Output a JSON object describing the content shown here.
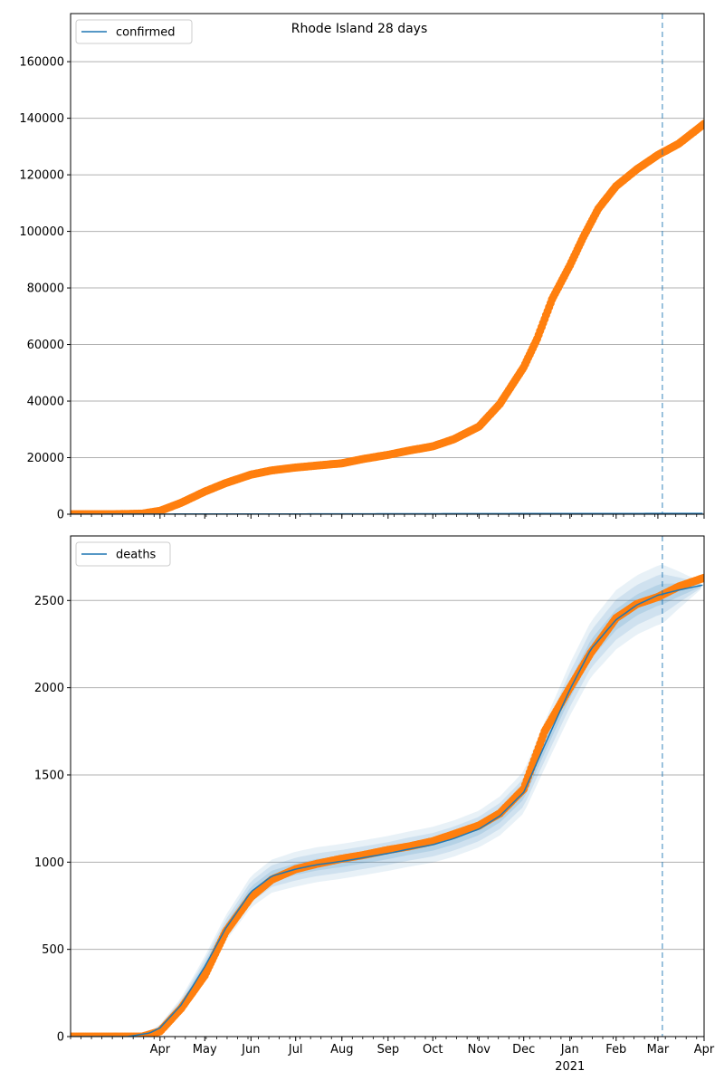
{
  "title": "Rhode Island 28 days",
  "colors": {
    "line": "#1f77b4",
    "points": "#ff7f0e",
    "band": "#1f77b4",
    "grid": "#b0b0b0"
  },
  "x_axis": {
    "start": "2020-02-01",
    "end": "2021-04-01",
    "month_ticks": [
      {
        "date": "2020-04-01",
        "label": "Apr"
      },
      {
        "date": "2020-05-01",
        "label": "May"
      },
      {
        "date": "2020-06-01",
        "label": "Jun"
      },
      {
        "date": "2020-07-01",
        "label": "Jul"
      },
      {
        "date": "2020-08-01",
        "label": "Aug"
      },
      {
        "date": "2020-09-01",
        "label": "Sep"
      },
      {
        "date": "2020-10-01",
        "label": "Oct"
      },
      {
        "date": "2020-11-01",
        "label": "Nov"
      },
      {
        "date": "2020-12-01",
        "label": "Dec"
      },
      {
        "date": "2021-01-01",
        "label": "Jan"
      },
      {
        "date": "2021-02-01",
        "label": "Feb"
      },
      {
        "date": "2021-03-01",
        "label": "Mar"
      },
      {
        "date": "2021-04-01",
        "label": "Apr"
      }
    ],
    "year_label": "2021",
    "forecast_date": "2021-03-04"
  },
  "chart_data": [
    {
      "type": "line",
      "legend": "confirmed",
      "legend_position": "top-left",
      "grid": "horizontal",
      "ylim": [
        0,
        177000
      ],
      "yticks": [
        0,
        20000,
        40000,
        60000,
        80000,
        100000,
        120000,
        140000,
        160000
      ],
      "model": [
        [
          "2020-02-01",
          0
        ],
        [
          "2021-04-01",
          300
        ]
      ],
      "observed": [
        [
          "2020-02-01",
          0
        ],
        [
          "2020-03-01",
          0
        ],
        [
          "2020-03-20",
          200
        ],
        [
          "2020-04-01",
          1200
        ],
        [
          "2020-04-15",
          4000
        ],
        [
          "2020-05-01",
          8000
        ],
        [
          "2020-05-15",
          11000
        ],
        [
          "2020-06-01",
          14000
        ],
        [
          "2020-06-15",
          15500
        ],
        [
          "2020-07-01",
          16500
        ],
        [
          "2020-07-15",
          17200
        ],
        [
          "2020-08-01",
          18000
        ],
        [
          "2020-08-15",
          19500
        ],
        [
          "2020-09-01",
          21000
        ],
        [
          "2020-09-15",
          22500
        ],
        [
          "2020-10-01",
          24000
        ],
        [
          "2020-10-15",
          26500
        ],
        [
          "2020-11-01",
          31000
        ],
        [
          "2020-11-15",
          39000
        ],
        [
          "2020-12-01",
          52000
        ],
        [
          "2020-12-10",
          62000
        ],
        [
          "2020-12-20",
          76000
        ],
        [
          "2021-01-01",
          88000
        ],
        [
          "2021-01-10",
          98000
        ],
        [
          "2021-01-20",
          108000
        ],
        [
          "2021-02-01",
          116000
        ],
        [
          "2021-02-15",
          122000
        ],
        [
          "2021-03-01",
          127000
        ],
        [
          "2021-03-15",
          131000
        ],
        [
          "2021-04-01",
          138000
        ]
      ]
    },
    {
      "type": "line",
      "legend": "deaths",
      "legend_position": "top-left",
      "grid": "horizontal",
      "ylim": [
        0,
        2870
      ],
      "yticks": [
        0,
        500,
        1000,
        1500,
        2000,
        2500
      ],
      "model": [
        [
          "2020-02-01",
          0
        ],
        [
          "2020-03-10",
          0
        ],
        [
          "2020-03-25",
          20
        ],
        [
          "2020-04-01",
          50
        ],
        [
          "2020-04-15",
          180
        ],
        [
          "2020-05-01",
          400
        ],
        [
          "2020-05-15",
          620
        ],
        [
          "2020-06-01",
          830
        ],
        [
          "2020-06-15",
          920
        ],
        [
          "2020-07-01",
          960
        ],
        [
          "2020-07-15",
          985
        ],
        [
          "2020-08-01",
          1005
        ],
        [
          "2020-08-15",
          1025
        ],
        [
          "2020-09-01",
          1050
        ],
        [
          "2020-09-15",
          1075
        ],
        [
          "2020-10-01",
          1100
        ],
        [
          "2020-10-15",
          1135
        ],
        [
          "2020-11-01",
          1190
        ],
        [
          "2020-11-15",
          1265
        ],
        [
          "2020-12-01",
          1400
        ],
        [
          "2020-12-15",
          1670
        ],
        [
          "2021-01-01",
          1990
        ],
        [
          "2021-01-15",
          2220
        ],
        [
          "2021-02-01",
          2390
        ],
        [
          "2021-02-15",
          2475
        ],
        [
          "2021-03-01",
          2530
        ],
        [
          "2021-03-15",
          2560
        ],
        [
          "2021-04-01",
          2590
        ]
      ],
      "observed": [
        [
          "2020-02-01",
          0
        ],
        [
          "2020-03-20",
          0
        ],
        [
          "2020-04-01",
          30
        ],
        [
          "2020-04-15",
          160
        ],
        [
          "2020-05-01",
          350
        ],
        [
          "2020-05-15",
          600
        ],
        [
          "2020-06-01",
          800
        ],
        [
          "2020-06-15",
          900
        ],
        [
          "2020-07-01",
          960
        ],
        [
          "2020-07-15",
          990
        ],
        [
          "2020-08-01",
          1020
        ],
        [
          "2020-08-15",
          1040
        ],
        [
          "2020-09-01",
          1070
        ],
        [
          "2020-09-15",
          1090
        ],
        [
          "2020-10-01",
          1120
        ],
        [
          "2020-10-15",
          1160
        ],
        [
          "2020-11-01",
          1210
        ],
        [
          "2020-11-15",
          1280
        ],
        [
          "2020-12-01",
          1420
        ],
        [
          "2020-12-15",
          1750
        ],
        [
          "2021-01-01",
          2000
        ],
        [
          "2021-01-15",
          2200
        ],
        [
          "2021-02-01",
          2400
        ],
        [
          "2021-02-15",
          2480
        ],
        [
          "2021-03-01",
          2520
        ],
        [
          "2021-03-15",
          2580
        ],
        [
          "2021-04-01",
          2630
        ]
      ],
      "bands": [
        {
          "level": "outer",
          "opacity": 0.1,
          "halfwidth": [
            [
              "2020-02-01",
              0
            ],
            [
              "2020-03-25",
              10
            ],
            [
              "2020-04-15",
              40
            ],
            [
              "2020-05-01",
              60
            ],
            [
              "2020-06-01",
              90
            ],
            [
              "2020-07-01",
              100
            ],
            [
              "2020-09-01",
              100
            ],
            [
              "2020-11-01",
              105
            ],
            [
              "2020-12-01",
              120
            ],
            [
              "2021-01-01",
              150
            ],
            [
              "2021-02-01",
              170
            ],
            [
              "2021-03-04",
              170
            ],
            [
              "2021-04-01",
              10
            ]
          ]
        },
        {
          "level": "mid",
          "opacity": 0.12,
          "halfwidth": [
            [
              "2020-02-01",
              0
            ],
            [
              "2020-03-25",
              7
            ],
            [
              "2020-04-15",
              28
            ],
            [
              "2020-05-01",
              40
            ],
            [
              "2020-06-01",
              60
            ],
            [
              "2020-07-01",
              65
            ],
            [
              "2020-09-01",
              65
            ],
            [
              "2020-11-01",
              70
            ],
            [
              "2020-12-01",
              80
            ],
            [
              "2021-01-01",
              100
            ],
            [
              "2021-02-01",
              115
            ],
            [
              "2021-03-04",
              115
            ],
            [
              "2021-04-01",
              7
            ]
          ]
        },
        {
          "level": "inner",
          "opacity": 0.14,
          "halfwidth": [
            [
              "2020-02-01",
              0
            ],
            [
              "2020-03-25",
              4
            ],
            [
              "2020-04-15",
              15
            ],
            [
              "2020-05-01",
              20
            ],
            [
              "2020-06-01",
              30
            ],
            [
              "2020-07-01",
              33
            ],
            [
              "2020-09-01",
              33
            ],
            [
              "2020-11-01",
              35
            ],
            [
              "2020-12-01",
              40
            ],
            [
              "2021-01-01",
              50
            ],
            [
              "2021-02-01",
              60
            ],
            [
              "2021-03-04",
              60
            ],
            [
              "2021-04-01",
              4
            ]
          ]
        }
      ]
    }
  ]
}
